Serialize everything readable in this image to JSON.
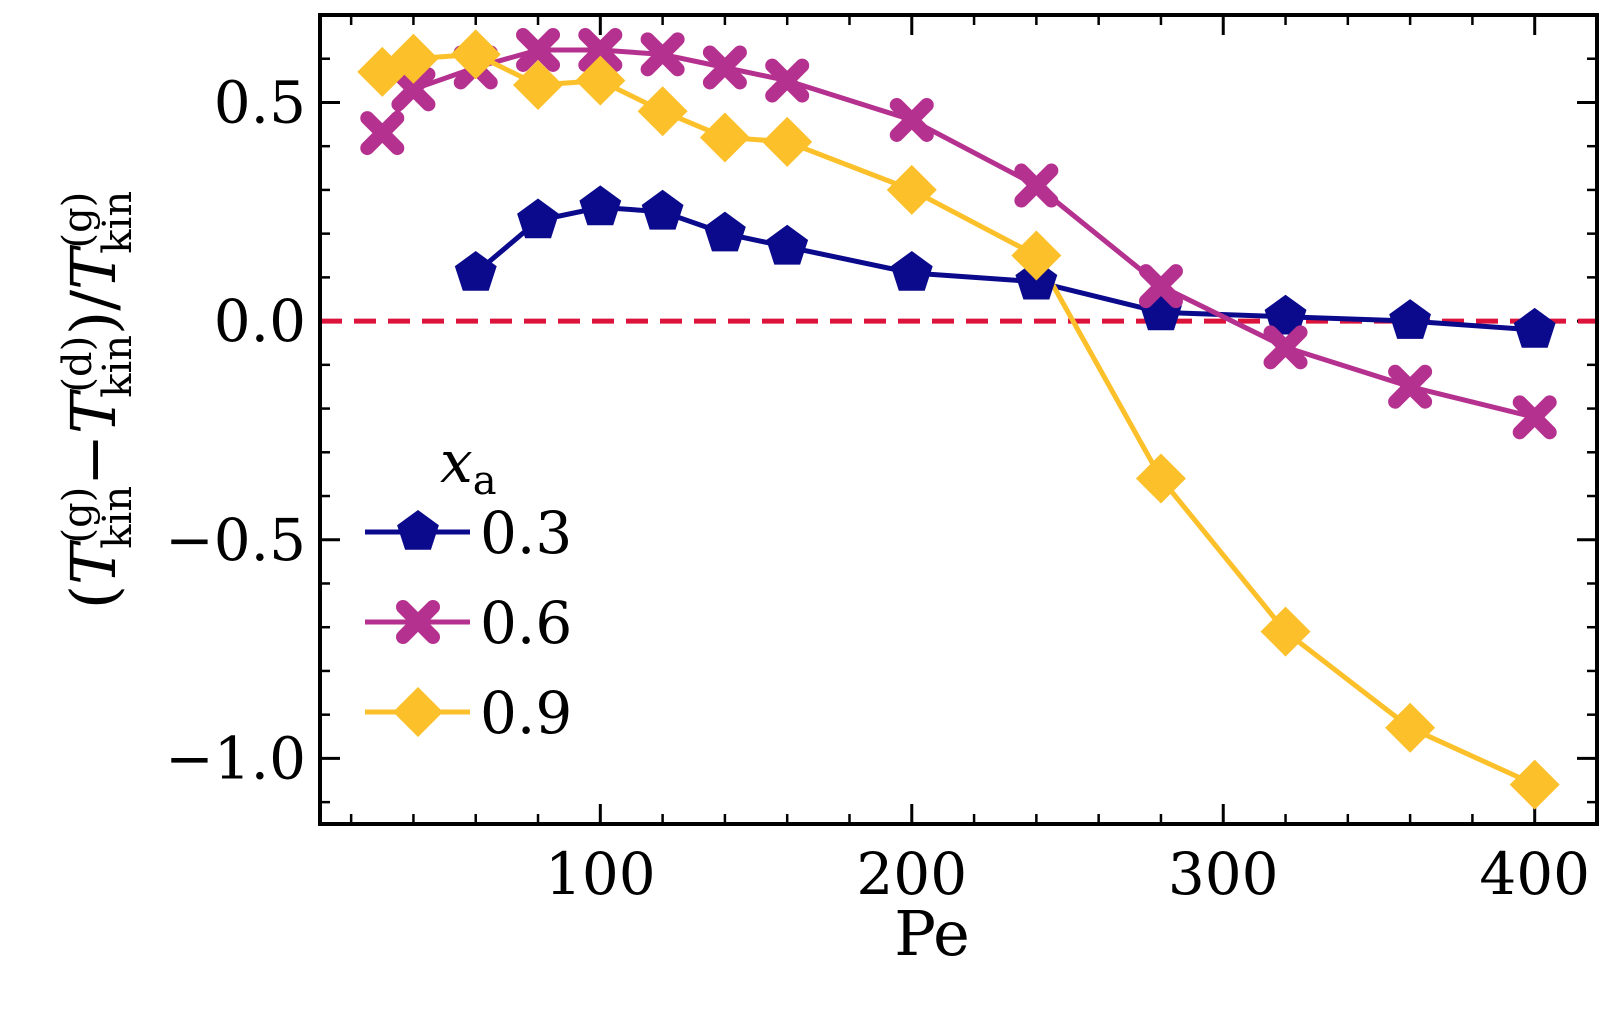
{
  "chart_data": {
    "type": "line",
    "xlabel": "Pe",
    "ylabel": {
      "open": "(",
      "t1": "T",
      "sub1": "kin",
      "sup1": "(g)",
      "minus": "−",
      "t2": "T",
      "sub2": "kin",
      "sup2": "(d)",
      "close": ")/",
      "t3": "T",
      "sub3": "kin",
      "sup3": "(g)"
    },
    "xlim": [
      10,
      420
    ],
    "ylim": [
      -1.15,
      0.7
    ],
    "xticks": [
      100,
      200,
      300,
      400
    ],
    "xtick_labels": [
      "100",
      "200",
      "300",
      "400"
    ],
    "yticks": [
      -1.0,
      -0.5,
      0.0,
      0.5
    ],
    "ytick_labels": [
      "−1.0",
      "−0.5",
      "0.0",
      "0.5"
    ],
    "reference_line": {
      "y": 0.0,
      "style": "dashed",
      "color": "#dc143c"
    },
    "legend": {
      "title_main": "x",
      "title_sub": "a",
      "placement": "lower-left"
    },
    "series": [
      {
        "name": "0.3",
        "color": "#0b0a8c",
        "marker": "pentagon",
        "x": [
          60,
          80,
          100,
          120,
          140,
          160,
          200,
          240,
          280,
          320,
          360,
          400
        ],
        "y": [
          0.11,
          0.23,
          0.26,
          0.25,
          0.2,
          0.17,
          0.11,
          0.09,
          0.02,
          0.01,
          0.0,
          -0.02
        ]
      },
      {
        "name": "0.6",
        "color": "#b5318f",
        "marker": "x",
        "x": [
          30,
          40,
          60,
          80,
          100,
          120,
          140,
          160,
          200,
          240,
          280,
          320,
          360,
          400
        ],
        "y": [
          0.43,
          0.53,
          0.58,
          0.62,
          0.62,
          0.61,
          0.58,
          0.55,
          0.46,
          0.31,
          0.08,
          -0.06,
          -0.15,
          -0.22
        ]
      },
      {
        "name": "0.9",
        "color": "#fcc02a",
        "marker": "diamond",
        "x": [
          30,
          40,
          60,
          80,
          100,
          120,
          140,
          160,
          200,
          240,
          280,
          320,
          360,
          400
        ],
        "y": [
          0.57,
          0.6,
          0.61,
          0.54,
          0.55,
          0.48,
          0.42,
          0.41,
          0.3,
          0.15,
          -0.36,
          -0.71,
          -0.93,
          -1.06
        ]
      }
    ]
  }
}
